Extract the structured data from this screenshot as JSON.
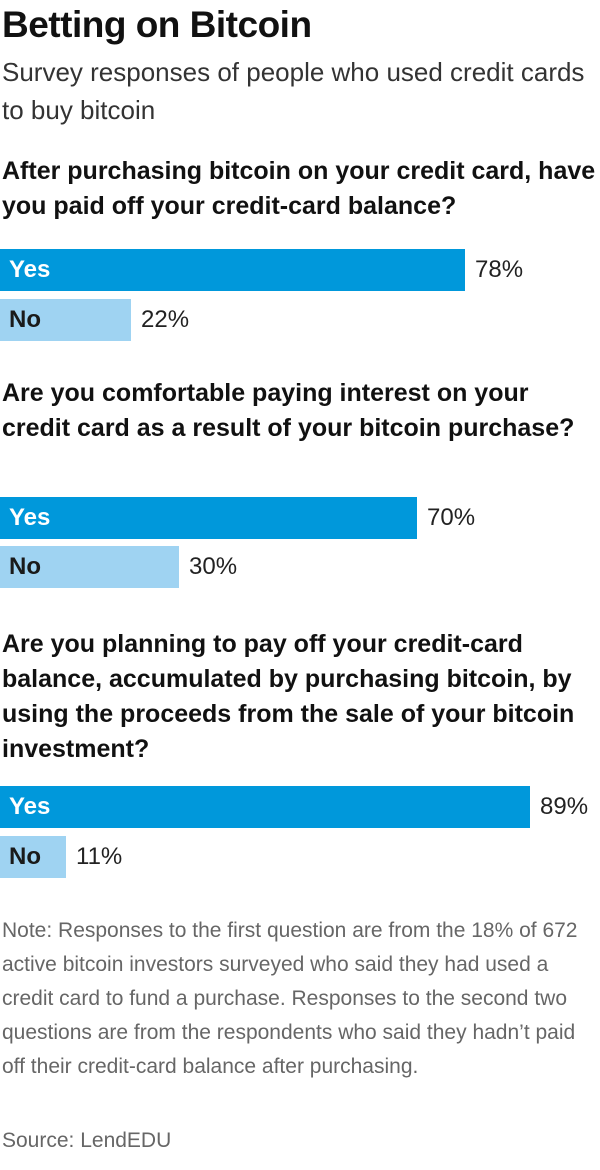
{
  "title": "Betting on Bitcoin",
  "subtitle": "Survey responses of people who used credit cards to buy bitcoin",
  "colors": {
    "yes": "#0098db",
    "no": "#9fd3f2",
    "yes_text": "#ffffff",
    "no_text": "#1a1a1a"
  },
  "chart_data": [
    {
      "type": "bar",
      "title": "After purchasing bitcoin on your credit card, have you paid off your credit-card balance?",
      "categories": [
        "Yes",
        "No"
      ],
      "values": [
        78,
        22
      ],
      "value_labels": [
        "78%",
        "22%"
      ]
    },
    {
      "type": "bar",
      "title": "Are you comfortable paying interest on your credit card as a result of your bitcoin purchase?",
      "categories": [
        "Yes",
        "No"
      ],
      "values": [
        70,
        30
      ],
      "value_labels": [
        "70%",
        "30%"
      ]
    },
    {
      "type": "bar",
      "title": "Are you planning to pay off your credit-card balance, accumulated by purchasing bitcoin, by using the proceeds from the sale of your bitcoin investment?",
      "categories": [
        "Yes",
        "No"
      ],
      "values": [
        89,
        11
      ],
      "value_labels": [
        "89%",
        "11%"
      ]
    }
  ],
  "note": "Note: Responses to the first question are from the 18% of 672 active bitcoin investors surveyed who said they had used a credit card to fund a purchase. Responses to the second two questions are from the respondents who said they hadn’t paid off their credit-card balance after purchasing.",
  "source": "Source: LendEDU"
}
